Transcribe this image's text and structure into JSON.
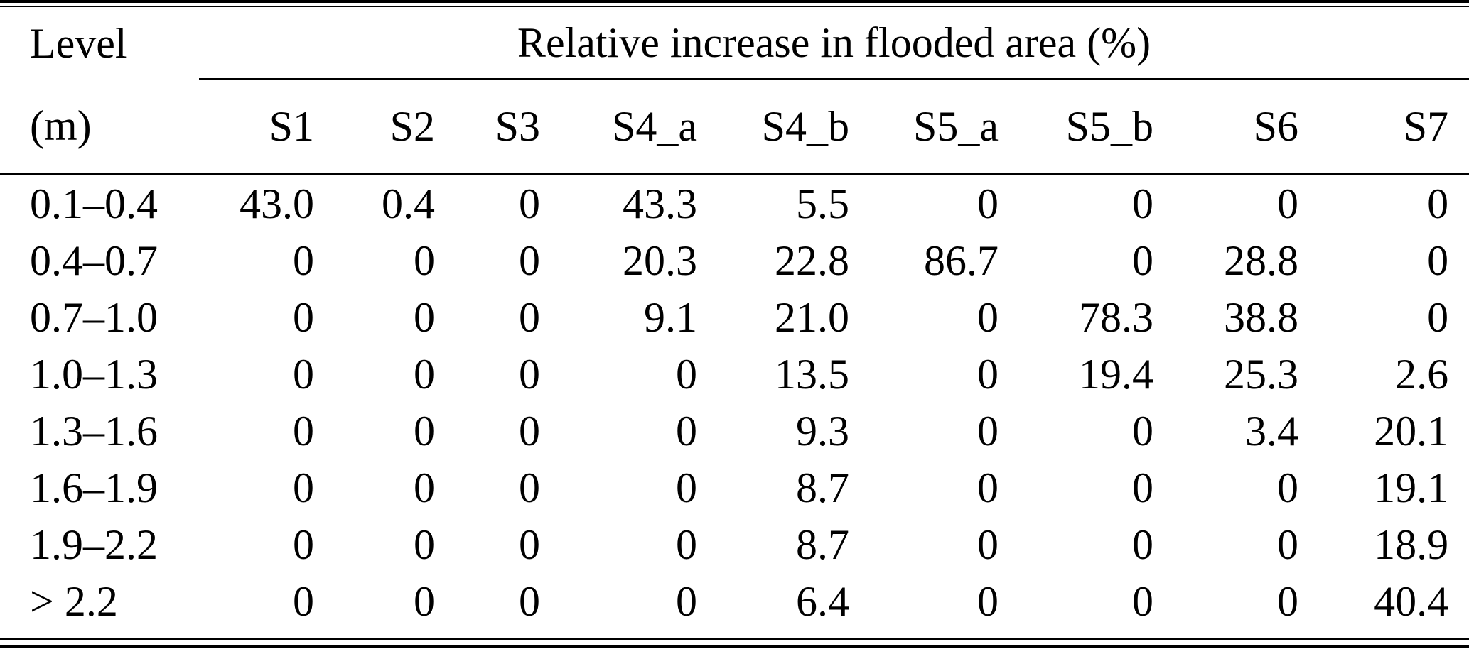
{
  "table": {
    "level_header": "Level",
    "unit_header": "(m)",
    "span_header": "Relative increase in flooded area (%)",
    "columns": [
      "S1",
      "S2",
      "S3",
      "S4_a",
      "S4_b",
      "S5_a",
      "S5_b",
      "S6",
      "S7"
    ],
    "rows": [
      {
        "level": "0.1–0.4",
        "values": [
          "43.0",
          "0.4",
          "0",
          "43.3",
          "5.5",
          "0",
          "0",
          "0",
          "0"
        ]
      },
      {
        "level": "0.4–0.7",
        "values": [
          "0",
          "0",
          "0",
          "20.3",
          "22.8",
          "86.7",
          "0",
          "28.8",
          "0"
        ]
      },
      {
        "level": "0.7–1.0",
        "values": [
          "0",
          "0",
          "0",
          "9.1",
          "21.0",
          "0",
          "78.3",
          "38.8",
          "0"
        ]
      },
      {
        "level": "1.0–1.3",
        "values": [
          "0",
          "0",
          "0",
          "0",
          "13.5",
          "0",
          "19.4",
          "25.3",
          "2.6"
        ]
      },
      {
        "level": "1.3–1.6",
        "values": [
          "0",
          "0",
          "0",
          "0",
          "9.3",
          "0",
          "0",
          "3.4",
          "20.1"
        ]
      },
      {
        "level": "1.6–1.9",
        "values": [
          "0",
          "0",
          "0",
          "0",
          "8.7",
          "0",
          "0",
          "0",
          "19.1"
        ]
      },
      {
        "level": "1.9–2.2",
        "values": [
          "0",
          "0",
          "0",
          "0",
          "8.7",
          "0",
          "0",
          "0",
          "18.9"
        ]
      },
      {
        "level": "> 2.2",
        "values": [
          "0",
          "0",
          "0",
          "0",
          "6.4",
          "0",
          "0",
          "0",
          "40.4"
        ]
      }
    ],
    "colors": {
      "text": "#000000",
      "rule": "#000000",
      "background": "#ffffff"
    }
  }
}
